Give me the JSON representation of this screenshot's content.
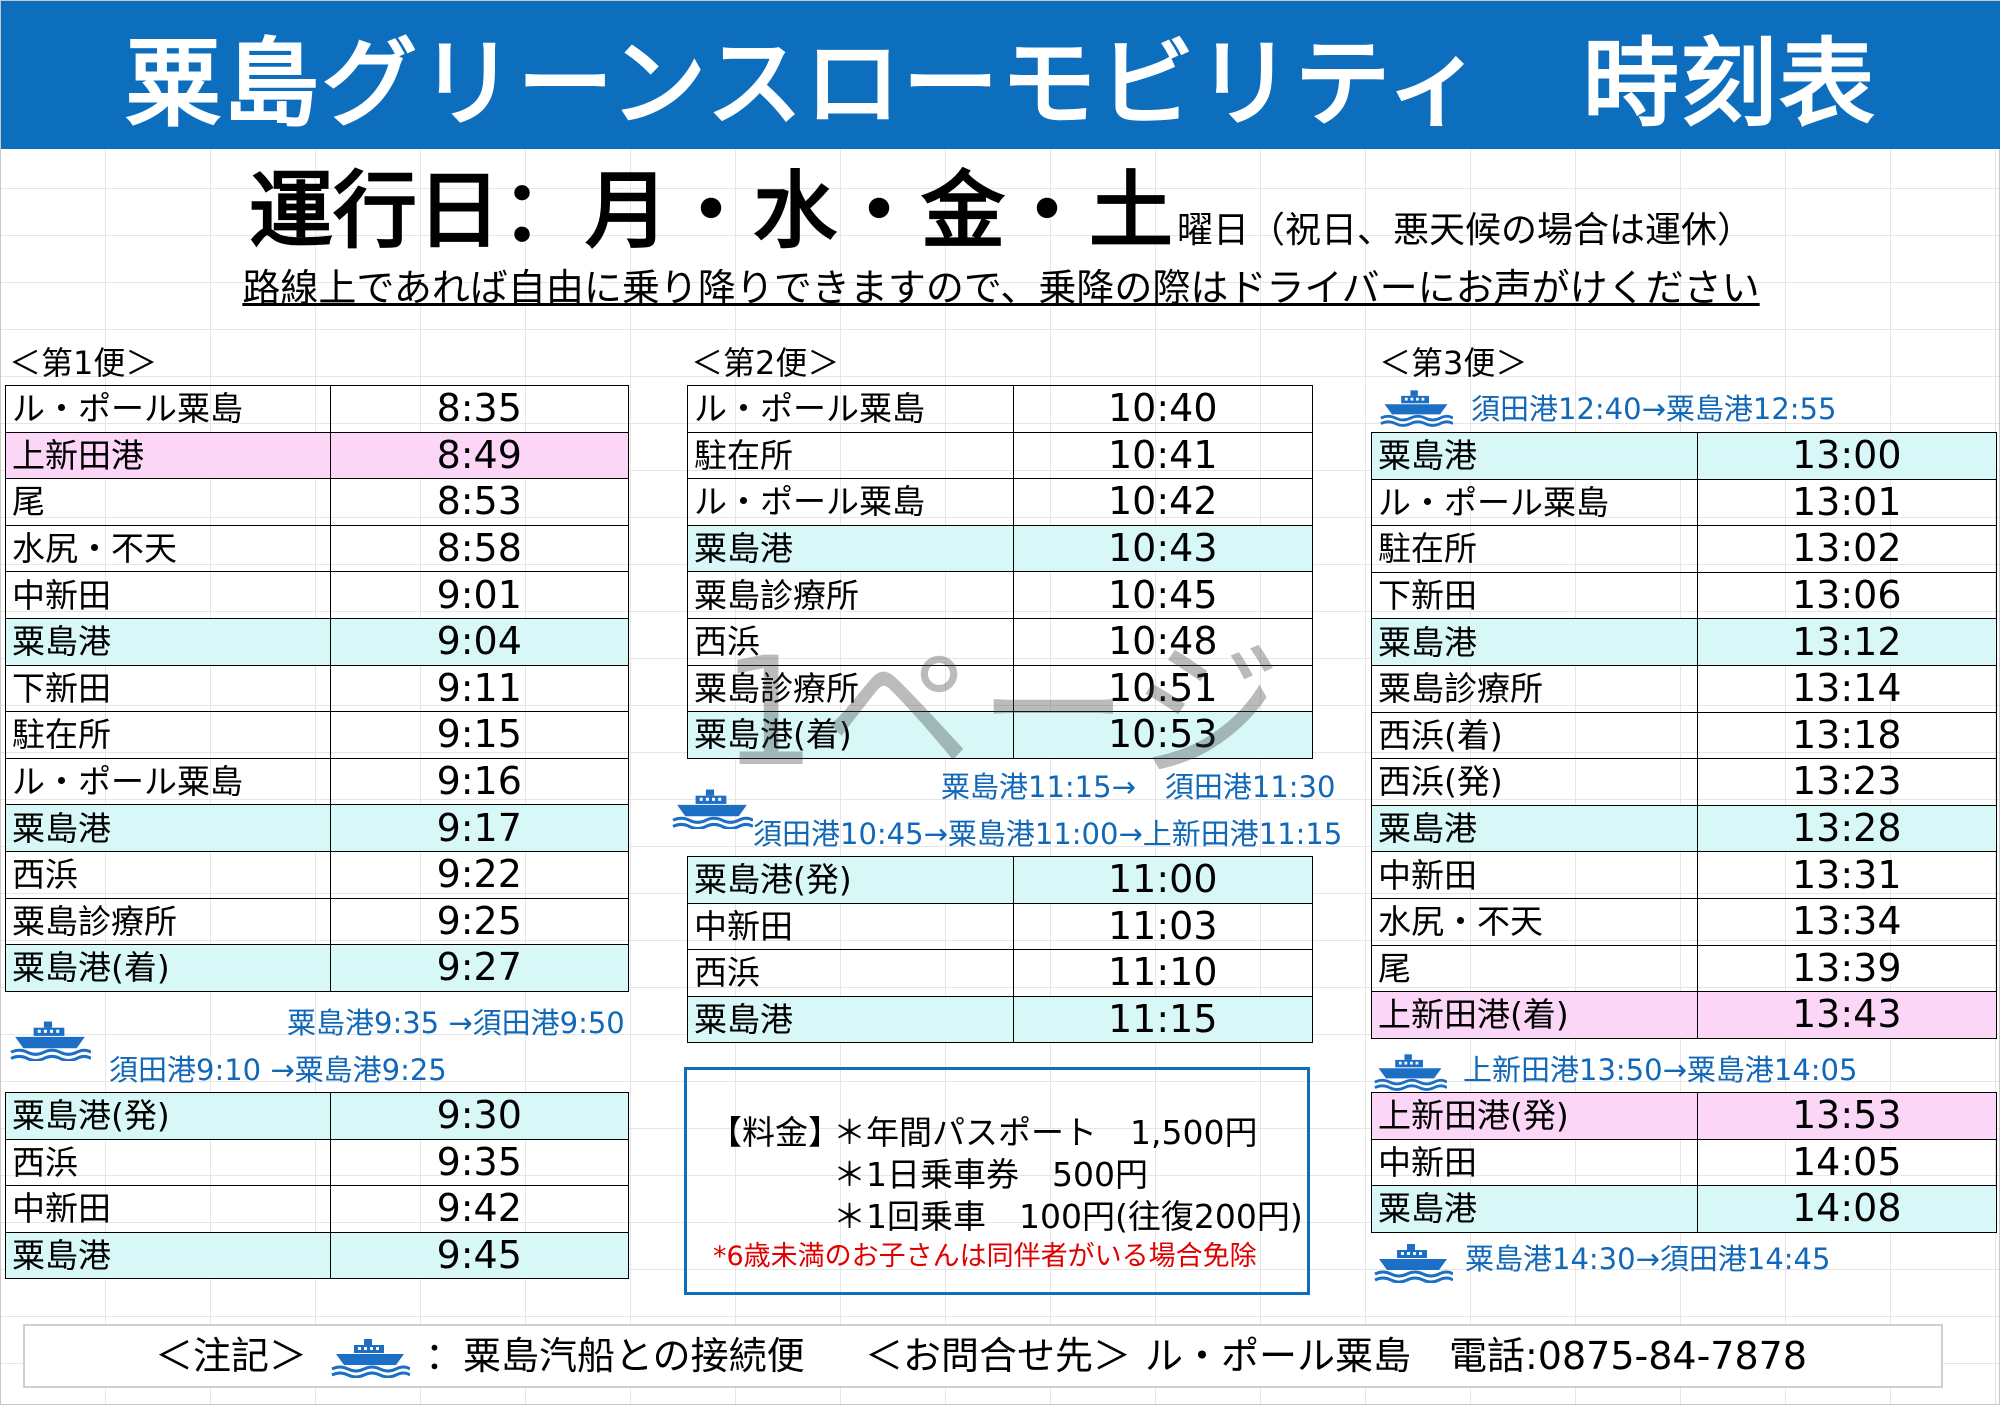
{
  "header": {
    "title": "粟島グリーンスローモビリティ　時刻表"
  },
  "operation": {
    "days": "運行日：月・水・金・土",
    "suffix": "曜日（祝日、悪天候の場合は運休）",
    "ride_note": "路線上であれば自由に乗り降りできますので、乗降の際はドライバーにお声がけください"
  },
  "watermark": "1ページ",
  "colors": {
    "header_bg": "#0d6ebe",
    "ferry_text": "#1167b8",
    "cyan_row": "#d8f7f7",
    "pink_row": "#fbd6f6",
    "warning": "#e00000"
  },
  "trip1": {
    "label": "＜第1便＞",
    "rows_a": [
      {
        "stop": "ル・ポール粟島",
        "time": "8:35",
        "hl": ""
      },
      {
        "stop": "上新田港",
        "time": "8:49",
        "hl": "pink"
      },
      {
        "stop": "尾",
        "time": "8:53",
        "hl": ""
      },
      {
        "stop": "水尻・不天",
        "time": "8:58",
        "hl": ""
      },
      {
        "stop": "中新田",
        "time": "9:01",
        "hl": ""
      },
      {
        "stop": "粟島港",
        "time": "9:04",
        "hl": "cyan"
      },
      {
        "stop": "下新田",
        "time": "9:11",
        "hl": ""
      },
      {
        "stop": "駐在所",
        "time": "9:15",
        "hl": ""
      },
      {
        "stop": "ル・ポール粟島",
        "time": "9:16",
        "hl": ""
      },
      {
        "stop": "粟島港",
        "time": "9:17",
        "hl": "cyan"
      },
      {
        "stop": "西浜",
        "time": "9:22",
        "hl": ""
      },
      {
        "stop": "粟島診療所",
        "time": "9:25",
        "hl": ""
      },
      {
        "stop": "粟島港(着)",
        "time": "9:27",
        "hl": "cyan"
      }
    ],
    "ferry_1": "粟島港9:35 →須田港9:50",
    "ferry_2": "須田港9:10 →粟島港9:25",
    "rows_b": [
      {
        "stop": "粟島港(発)",
        "time": "9:30",
        "hl": "cyan"
      },
      {
        "stop": "西浜",
        "time": "9:35",
        "hl": ""
      },
      {
        "stop": "中新田",
        "time": "9:42",
        "hl": ""
      },
      {
        "stop": "粟島港",
        "time": "9:45",
        "hl": "cyan"
      }
    ]
  },
  "trip2": {
    "label": "＜第2便＞",
    "rows_a": [
      {
        "stop": "ル・ポール粟島",
        "time": "10:40",
        "hl": ""
      },
      {
        "stop": "駐在所",
        "time": "10:41",
        "hl": ""
      },
      {
        "stop": "ル・ポール粟島",
        "time": "10:42",
        "hl": ""
      },
      {
        "stop": "粟島港",
        "time": "10:43",
        "hl": "cyan"
      },
      {
        "stop": "粟島診療所",
        "time": "10:45",
        "hl": ""
      },
      {
        "stop": "西浜",
        "time": "10:48",
        "hl": ""
      },
      {
        "stop": "粟島診療所",
        "time": "10:51",
        "hl": ""
      },
      {
        "stop": "粟島港(着)",
        "time": "10:53",
        "hl": "cyan"
      }
    ],
    "ferry_1": "粟島港11:15→　須田港11:30",
    "ferry_2": "須田港10:45→粟島港11:00→上新田港11:15",
    "rows_b": [
      {
        "stop": "粟島港(発)",
        "time": "11:00",
        "hl": "cyan"
      },
      {
        "stop": "中新田",
        "time": "11:03",
        "hl": ""
      },
      {
        "stop": "西浜",
        "time": "11:10",
        "hl": ""
      },
      {
        "stop": "粟島港",
        "time": "11:15",
        "hl": "cyan"
      }
    ]
  },
  "trip3": {
    "label": "＜第3便＞",
    "ferry_top": "須田港12:40→粟島港12:55",
    "rows_a": [
      {
        "stop": "粟島港",
        "time": "13:00",
        "hl": "cyan"
      },
      {
        "stop": "ル・ポール粟島",
        "time": "13:01",
        "hl": ""
      },
      {
        "stop": "駐在所",
        "time": "13:02",
        "hl": ""
      },
      {
        "stop": "下新田",
        "time": "13:06",
        "hl": ""
      },
      {
        "stop": "粟島港",
        "time": "13:12",
        "hl": "cyan"
      },
      {
        "stop": "粟島診療所",
        "time": "13:14",
        "hl": ""
      },
      {
        "stop": "西浜(着)",
        "time": "13:18",
        "hl": ""
      },
      {
        "stop": "西浜(発)",
        "time": "13:23",
        "hl": ""
      },
      {
        "stop": "粟島港",
        "time": "13:28",
        "hl": "cyan"
      },
      {
        "stop": "中新田",
        "time": "13:31",
        "hl": ""
      },
      {
        "stop": "水尻・不天",
        "time": "13:34",
        "hl": ""
      },
      {
        "stop": "尾",
        "time": "13:39",
        "hl": ""
      },
      {
        "stop": "上新田港(着)",
        "time": "13:43",
        "hl": "pink"
      }
    ],
    "ferry_mid": "上新田港13:50→粟島港14:05",
    "rows_b": [
      {
        "stop": "上新田港(発)",
        "time": "13:53",
        "hl": "pink"
      },
      {
        "stop": "中新田",
        "time": "14:05",
        "hl": ""
      },
      {
        "stop": "粟島港",
        "time": "14:08",
        "hl": "cyan"
      }
    ],
    "ferry_bottom": "粟島港14:30→須田港14:45"
  },
  "fares": {
    "label": "【料金】",
    "annual": "＊年間パスポート　1,500円",
    "day": "＊1日乗車券　500円",
    "single": "＊1回乗車　100円(往復200円)",
    "note": "*6歳未満のお子さんは同伴者がいる場合免除"
  },
  "footer": {
    "note_label": "＜注記＞",
    "ship_meaning": "：粟島汽船との接続便",
    "contact_label": "＜お問合せ先＞",
    "contact": "ル・ポール粟島　電話:0875-84-7878"
  }
}
